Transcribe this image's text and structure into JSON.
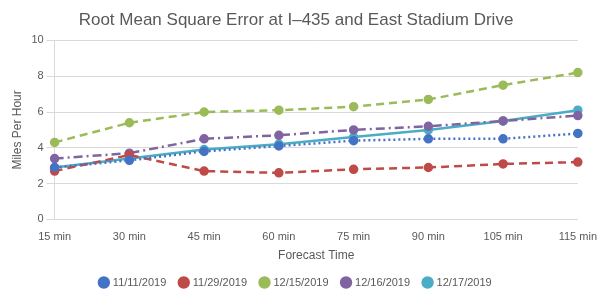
{
  "chart_data": {
    "type": "line",
    "title": "Root Mean Square Error at I–435 and East Stadium Drive",
    "x_label": "Forecast Time",
    "y_label": "Miles Per Hour",
    "categories": [
      "15 min",
      "30 min",
      "45 min",
      "60 min",
      "75 min",
      "90 min",
      "105 min",
      "115 min"
    ],
    "series": [
      {
        "name": "11/11/2019",
        "color": "#4472c4",
        "line_style": "dotted",
        "marker": "circle",
        "values": [
          2.9,
          3.3,
          3.8,
          4.1,
          4.4,
          4.5,
          4.5,
          4.8
        ]
      },
      {
        "name": "11/29/2019",
        "color": "#be4b48",
        "line_style": "dashed",
        "marker": "circle",
        "values": [
          2.7,
          3.6,
          2.7,
          2.6,
          2.8,
          2.9,
          3.1,
          3.2
        ]
      },
      {
        "name": "12/15/2019",
        "color": "#9bbb59",
        "line_style": "dashed",
        "marker": "circle",
        "values": [
          4.3,
          5.4,
          6.0,
          6.1,
          6.3,
          6.7,
          7.5,
          8.2
        ]
      },
      {
        "name": "12/16/2019",
        "color": "#8064a2",
        "line_style": "dash_dot",
        "marker": "circle",
        "values": [
          3.4,
          3.7,
          4.5,
          4.7,
          5.0,
          5.2,
          5.5,
          5.8
        ]
      },
      {
        "name": "12/17/2019",
        "color": "#4bacc6",
        "line_style": "solid",
        "marker": "circle",
        "values": [
          2.9,
          3.4,
          3.9,
          4.2,
          4.6,
          5.0,
          5.5,
          6.1
        ]
      }
    ],
    "ylim": [
      0,
      10
    ],
    "yticks": [
      0,
      2,
      4,
      6,
      8,
      10
    ],
    "grid": true,
    "legend": "bottom"
  }
}
